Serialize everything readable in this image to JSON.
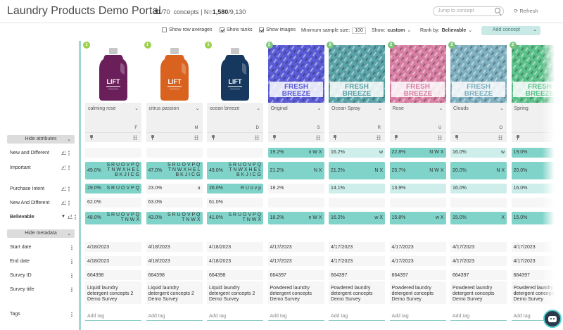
{
  "header": {
    "title": "Laundry Products Demo Portal",
    "count_shown": "31",
    "count_total": "/70",
    "count_label": "concepts",
    "n_sep": "| N=",
    "n_value": "1,580",
    "n_total": "/9,130",
    "search_placeholder": "Jump to concept",
    "refresh_label": "Refresh"
  },
  "toolbar": {
    "row_averages_label": "Show row averages",
    "ranks_label": "Show ranks",
    "images_label": "Show images",
    "min_sample_label": "Minimum sample size:",
    "min_sample_value": "100",
    "show_label": "Show:",
    "show_value": "custom",
    "rank_by_label": "Rank by:",
    "rank_by_value": "Believable",
    "add_concept_label": "Add concept"
  },
  "sidebar": {
    "hide_attributes_label": "Hide attributes",
    "hide_metadata_label": "Hide metadata",
    "attributes": [
      "New and Different",
      "Important",
      "Purchase Intent",
      "New And Different",
      "Believable"
    ],
    "metadata": [
      "Start date",
      "End date",
      "Survey ID",
      "Survey title",
      "Tags"
    ]
  },
  "colors": {
    "highlight": "#7fd3c9",
    "light": "#cdeeea",
    "badge1": "#9ccf4a",
    "badge2": "#7bc67b"
  },
  "concepts": [
    {
      "badge": "1",
      "name": "calming rose",
      "code": "F",
      "kind": "bottle",
      "color": "#6b1f5a",
      "cells": [
        {
          "v": "",
          "l": "",
          "s": "none"
        },
        {
          "v": "49.0%",
          "l": "S R U O V P Q\nT N W X H E L\nB K J I C G",
          "s": "hi"
        },
        {
          "v": "29.0%",
          "l": "S R U O V P Q",
          "s": "hi"
        },
        {
          "v": "62.0%",
          "l": "",
          "s": "none"
        },
        {
          "v": "48.0%",
          "l": "S R U O V P Q\nT N W X",
          "s": "hi"
        }
      ],
      "start": "4/18/2023",
      "end": "4/18/2023",
      "survey_id": "664398",
      "survey_title": "Liquid laundry detergent concepts 2 Demo Survey",
      "tag": "Add tag"
    },
    {
      "badge": "1",
      "name": "citrus passion",
      "code": "M",
      "kind": "bottle",
      "color": "#d9621f",
      "cells": [
        {
          "v": "",
          "l": "",
          "s": "none"
        },
        {
          "v": "47.0%",
          "l": "S R U O V P Q\nT N W X H E L\nB K J I C G",
          "s": "hi"
        },
        {
          "v": "23.0%",
          "l": "u",
          "s": "none"
        },
        {
          "v": "63.0%",
          "l": "",
          "s": "none"
        },
        {
          "v": "43.0%",
          "l": "S R U O V P Q\nT N W X",
          "s": "hi"
        }
      ],
      "start": "4/18/2023",
      "end": "4/18/2023",
      "survey_id": "664398",
      "survey_title": "Liquid laundry detergent concepts 2 Demo Survey",
      "tag": "Add tag"
    },
    {
      "badge": "1",
      "name": "ocean breeze",
      "code": "D",
      "kind": "bottle",
      "color": "#16385e",
      "cells": [
        {
          "v": "",
          "l": "",
          "s": "none"
        },
        {
          "v": "49.0%",
          "l": "S R U O V P Q\nT N W X H E L\nB K J I C G",
          "s": "hi"
        },
        {
          "v": "26.0%",
          "l": "R U o v p",
          "s": "hi"
        },
        {
          "v": "61.0%",
          "l": "",
          "s": "none"
        },
        {
          "v": "41.0%",
          "l": "S R U O V P Q\nT N W X",
          "s": "hi"
        }
      ],
      "start": "4/18/2023",
      "end": "4/18/2023",
      "survey_id": "664398",
      "survey_title": "Liquid laundry detergent concepts 2 Demo Survey",
      "tag": "Add tag"
    },
    {
      "badge": "2",
      "name": "Original",
      "code": "S",
      "kind": "bag",
      "color": "#5b5bd6",
      "cells": [
        {
          "v": "19.2%",
          "l": "n W X",
          "s": "hi"
        },
        {
          "v": "21.2%",
          "l": "N X",
          "s": "hi"
        },
        {
          "v": "18.2%",
          "l": "",
          "s": "none"
        },
        {
          "v": "",
          "l": "",
          "s": "none"
        },
        {
          "v": "18.2%",
          "l": "n W X",
          "s": "hi"
        }
      ],
      "start": "4/17/2023",
      "end": "4/17/2023",
      "survey_id": "664397",
      "survey_title": "Powdered laundry detergent concepts Demo Survey",
      "tag": "Add tag"
    },
    {
      "badge": "2",
      "name": "Ocean Spray",
      "code": "R",
      "kind": "bag",
      "color": "#5aa3a8",
      "cells": [
        {
          "v": "16.2%",
          "l": "w",
          "s": "lo"
        },
        {
          "v": "21.2%",
          "l": "N X",
          "s": "hi"
        },
        {
          "v": "14.1%",
          "l": "",
          "s": "lo"
        },
        {
          "v": "",
          "l": "",
          "s": "none"
        },
        {
          "v": "16.2%",
          "l": "w X",
          "s": "hi"
        }
      ],
      "start": "4/17/2023",
      "end": "4/17/2023",
      "survey_id": "664397",
      "survey_title": "Powdered laundry detergent concepts Demo Survey",
      "tag": "Add tag"
    },
    {
      "badge": "2",
      "name": "Rose",
      "code": "U",
      "kind": "bag",
      "color": "#d77fa3",
      "cells": [
        {
          "v": "22.8%",
          "l": "N W X",
          "s": "hi"
        },
        {
          "v": "25.7%",
          "l": "N W X",
          "s": "hi"
        },
        {
          "v": "13.9%",
          "l": "",
          "s": "lo"
        },
        {
          "v": "",
          "l": "",
          "s": "none"
        },
        {
          "v": "15.8%",
          "l": "w X",
          "s": "hi"
        }
      ],
      "start": "4/17/2023",
      "end": "4/17/2023",
      "survey_id": "664397",
      "survey_title": "Powdered laundry detergent concepts Demo Survey",
      "tag": "Add tag"
    },
    {
      "badge": "2",
      "name": "Clouds",
      "code": "O",
      "kind": "bag",
      "color": "#7fb0c0",
      "cells": [
        {
          "v": "16.0%",
          "l": "w",
          "s": "lo"
        },
        {
          "v": "20.0%",
          "l": "N X",
          "s": "hi"
        },
        {
          "v": "16.0%",
          "l": "",
          "s": "lo"
        },
        {
          "v": "",
          "l": "",
          "s": "none"
        },
        {
          "v": "15.0%",
          "l": "X",
          "s": "hi"
        }
      ],
      "start": "4/17/2023",
      "end": "4/17/2023",
      "survey_id": "664397",
      "survey_title": "Powdered laundry detergent concepts Demo Survey",
      "tag": "Add tag"
    },
    {
      "badge": "2",
      "name": "Spring",
      "code": "",
      "kind": "bag",
      "color": "#5cc08a",
      "cells": [
        {
          "v": "19.0%",
          "l": "",
          "s": "hi"
        },
        {
          "v": "20.0%",
          "l": "",
          "s": "hi"
        },
        {
          "v": "16.0%",
          "l": "",
          "s": "lo"
        },
        {
          "v": "",
          "l": "",
          "s": "none"
        },
        {
          "v": "15.0%",
          "l": "",
          "s": "hi"
        }
      ],
      "start": "4/17/2023",
      "end": "4/17/2023",
      "survey_id": "664397",
      "survey_title": "Powdered laundry detergent concepts Demo Survey",
      "tag": "Add tag"
    }
  ]
}
